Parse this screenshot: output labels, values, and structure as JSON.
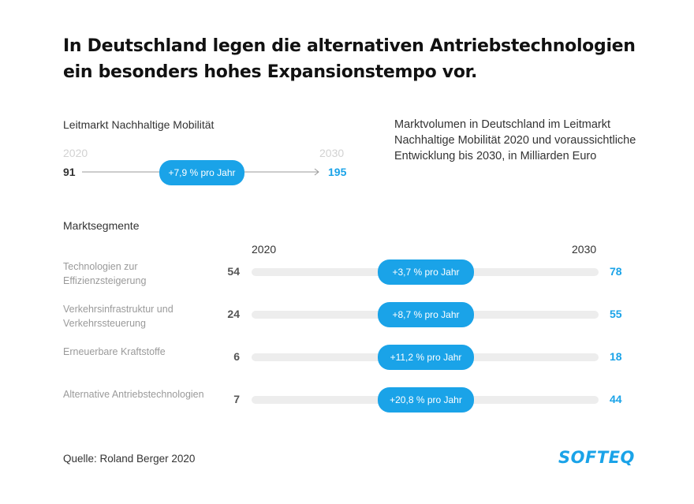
{
  "title": "In Deutschland legen die alternativen Antriebstechnologien ein besonders hohes Expansionstempo vor.",
  "leitmarkt": {
    "label": "Leitmarkt Nachhaltige Mobilität",
    "year_start": "2020",
    "year_end": "2030",
    "value_start": "91",
    "value_end": "195",
    "growth": "+7,9 % pro Jahr"
  },
  "description": "Marktvolumen in Deutschland im Leitmarkt Nachhaltige Mobilität 2020 und voraussichtliche Entwicklung bis 2030, in Milliarden Euro",
  "segments_header": "Marktsegmente",
  "chart_data": {
    "type": "table",
    "columns": [
      "2020",
      "2030"
    ],
    "rows": [
      {
        "label": "Technologien zur Effizienzsteigerung",
        "v2020": "54",
        "v2030": "78",
        "growth": "+3,7 % pro Jahr"
      },
      {
        "label": "Verkehrsinfrastruktur und Verkehrssteuerung",
        "v2020": "24",
        "v2030": "55",
        "growth": "+8,7 % pro Jahr"
      },
      {
        "label": "Erneuerbare Kraftstoffe",
        "v2020": "6",
        "v2030": "18",
        "growth": "+11,2 % pro Jahr"
      },
      {
        "label": "Alternative Antriebstechnologien",
        "v2020": "7",
        "v2030": "44",
        "growth": "+20,8 % pro Jahr"
      }
    ]
  },
  "source": "Quelle: Roland Berger 2020",
  "logo": "SOFTEQ",
  "colors": {
    "accent": "#1aa3e8",
    "track": "#ededed"
  }
}
